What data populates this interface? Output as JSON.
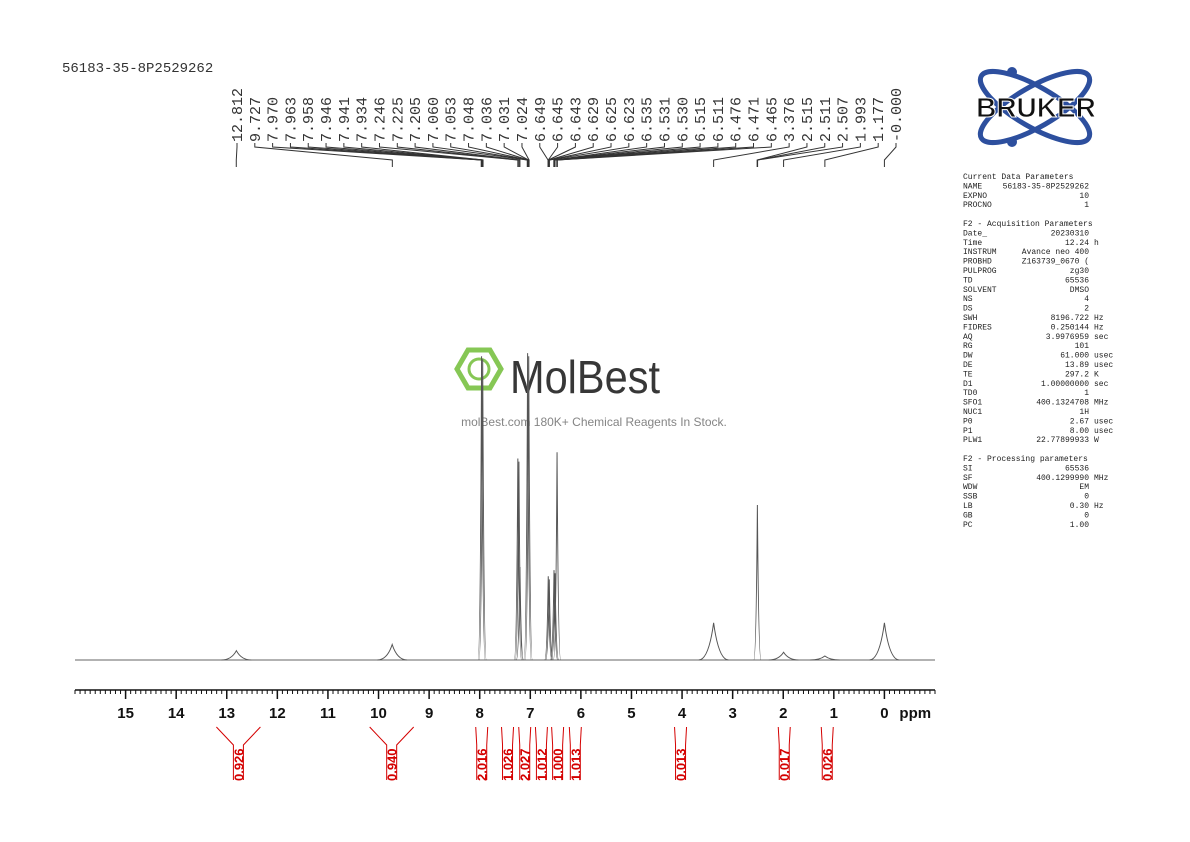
{
  "chart_data": {
    "type": "nmr",
    "title": "56183-35-8P2529262",
    "x_label": "ppm",
    "xlim": [
      16,
      -1
    ],
    "xticks": [
      15,
      14,
      13,
      12,
      11,
      10,
      9,
      8,
      7,
      6,
      5,
      4,
      3,
      2,
      1,
      0
    ],
    "ylim": [
      0,
      100
    ],
    "x": [
      12.81,
      9.73,
      7.963,
      7.941,
      7.246,
      7.225,
      7.205,
      7.053,
      7.031,
      6.645,
      6.625,
      6.531,
      6.511,
      6.471,
      3.376,
      2.511,
      1.993,
      1.177,
      0
    ],
    "values": [
      3,
      5,
      98,
      97,
      65,
      64,
      30,
      99,
      98,
      27,
      26,
      29,
      28,
      67,
      12,
      50,
      2.5,
      1.3,
      12
    ],
    "color": "#555555",
    "peak_labels": [
      12.812,
      9.727,
      {
        "value": 7.97,
        "label": "7.970"
      },
      7.963,
      7.958,
      7.946,
      7.941,
      7.934,
      7.246,
      7.225,
      7.205,
      {
        "value": 7.06,
        "label": "7.060"
      },
      7.053,
      7.048,
      7.036,
      7.031,
      7.024,
      6.649,
      6.645,
      6.643,
      6.629,
      6.625,
      6.623,
      6.535,
      6.531,
      {
        "value": 6.53,
        "label": "6.530"
      },
      6.515,
      6.511,
      6.476,
      6.471,
      6.465,
      3.376,
      2.515,
      2.511,
      2.507,
      1.993,
      1.177,
      {
        "value": 0,
        "label": "-0.000"
      }
    ],
    "integrals": {
      "color": "#d40000",
      "x": [
        12.77,
        9.74,
        7.96,
        7.45,
        7.11,
        6.78,
        6.46,
        6.11,
        4.03,
        1.98,
        1.13
      ],
      "values": [
        0.926,
        {
          "value": 0.94,
          "label": "0.940"
        },
        2.016,
        1.026,
        2.027,
        1.012,
        {
          "value": 1,
          "label": "1.000"
        },
        1.013,
        0.013,
        0.017,
        0.026
      ]
    }
  },
  "logo": "BRUKER",
  "watermark": {
    "name": "MolBest",
    "tagline": "molBest.com 180K+ Chemical Reagents In Stock."
  },
  "parameters": [
    {
      "title": "Current Data Parameters",
      "rows": [
        [
          "NAME",
          "56183-35-8P2529262"
        ],
        [
          "EXPNO",
          "10"
        ],
        [
          "PROCNO",
          "1"
        ]
      ]
    },
    {
      "title": "F2 - Acquisition Parameters",
      "rows": [
        [
          "Date_",
          "20230310"
        ],
        [
          "Time",
          "12.24",
          "h"
        ],
        [
          "INSTRUM",
          "Avance neo 400"
        ],
        [
          "PROBHD",
          "Z163739_0670 ("
        ],
        [
          "PULPROG",
          "zg30"
        ],
        [
          "TD",
          "65536"
        ],
        [
          "SOLVENT",
          "DMSO"
        ],
        [
          "NS",
          "4"
        ],
        [
          "DS",
          "2"
        ],
        [
          "SWH",
          "8196.722",
          "Hz"
        ],
        [
          "FIDRES",
          "0.250144",
          "Hz"
        ],
        [
          "AQ",
          "3.9976959",
          "sec"
        ],
        [
          "RG",
          "101"
        ],
        [
          "DW",
          "61.000",
          "usec"
        ],
        [
          "DE",
          "13.89",
          "usec"
        ],
        [
          "TE",
          "297.2",
          "K"
        ],
        [
          "D1",
          "1.00000000",
          "sec"
        ],
        [
          "TD0",
          "1"
        ],
        [
          "SFO1",
          "400.1324708",
          "MHz"
        ],
        [
          "NUC1",
          "1H"
        ],
        [
          "P0",
          "2.67",
          "usec"
        ],
        [
          "P1",
          "8.00",
          "usec"
        ],
        [
          "PLW1",
          "22.77899933",
          "W"
        ]
      ]
    },
    {
      "title": "F2 - Processing parameters",
      "rows": [
        [
          "SI",
          "65536"
        ],
        [
          "SF",
          "400.1299990",
          "MHz"
        ],
        [
          "WDW",
          "EM"
        ],
        [
          "SSB",
          "0"
        ],
        [
          "LB",
          "0.30",
          "Hz"
        ],
        [
          "GB",
          "0"
        ],
        [
          "PC",
          "1.00"
        ]
      ]
    }
  ]
}
